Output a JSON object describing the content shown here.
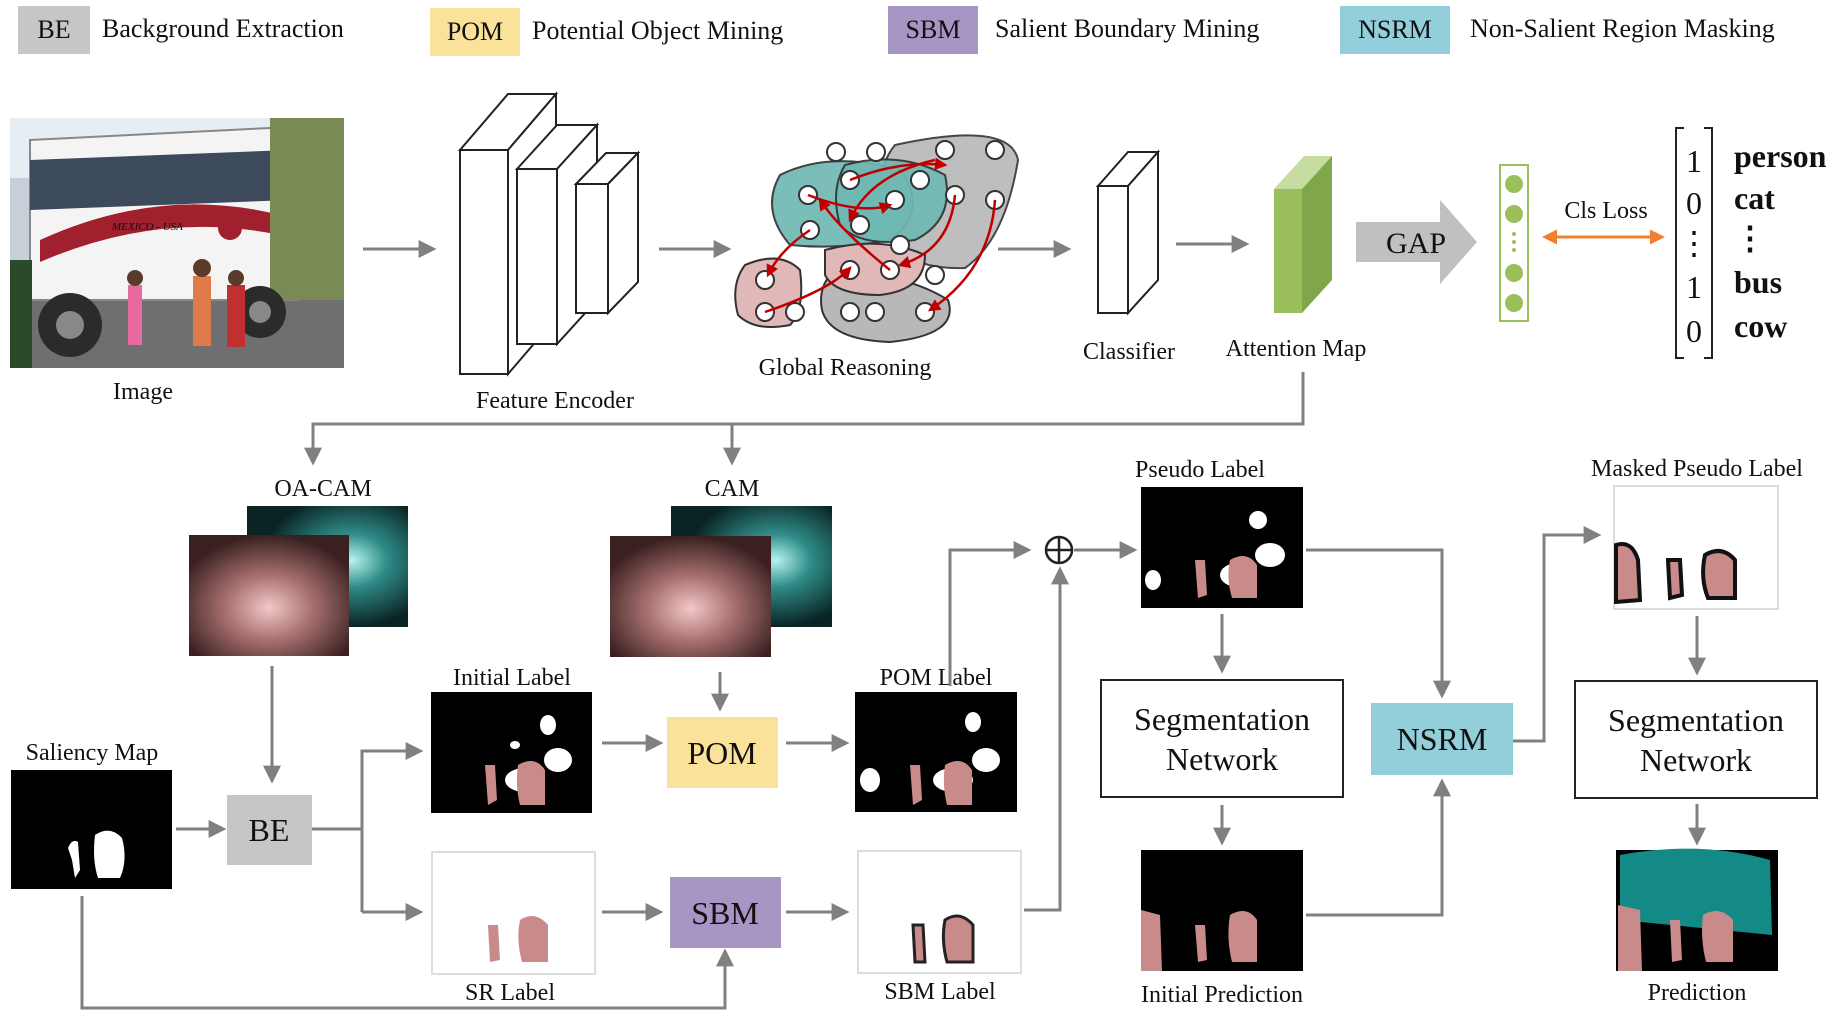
{
  "legend": [
    {
      "abbr": "BE",
      "label": "Background Extraction",
      "color": "#c6c6c6"
    },
    {
      "abbr": "POM",
      "label": "Potential Object Mining",
      "color": "#fbe29a"
    },
    {
      "abbr": "SBM",
      "label": "Salient Boundary Mining",
      "color": "#a795c4"
    },
    {
      "abbr": "NSRM",
      "label": "Non-Salient Region Masking",
      "color": "#93cedb"
    }
  ],
  "labels": {
    "image": "Image",
    "feature_encoder": "Feature Encoder",
    "global_reasoning": "Global Reasoning",
    "classifier": "Classifier",
    "attention_map": "Attention Map",
    "gap": "GAP",
    "cls_loss": "Cls Loss",
    "oa_cam": "OA-CAM",
    "cam": "CAM",
    "saliency_map": "Saliency Map",
    "initial_label": "Initial Label",
    "sr_label": "SR Label",
    "pom_label": "POM Label",
    "sbm_label": "SBM Label",
    "pseudo_label": "Pseudo Label",
    "initial_prediction": "Initial Prediction",
    "masked_pseudo_label": "Masked Pseudo Label",
    "prediction": "Prediction",
    "seg_net_1a": "Segmentation",
    "seg_net_1b": "Network",
    "seg_net_2a": "Segmentation",
    "seg_net_2b": "Network",
    "be_box": "BE",
    "pom_box": "POM",
    "sbm_box": "SBM",
    "nsrm_box": "NSRM",
    "bus_sign": "MEXICO - USA"
  },
  "class_vector": [
    {
      "value": "1",
      "name": "person",
      "positive": true
    },
    {
      "value": "0",
      "name": "cat",
      "positive": false
    },
    {
      "value": "⋮",
      "name": "⋮",
      "positive": false
    },
    {
      "value": "1",
      "name": "bus",
      "positive": true
    },
    {
      "value": "0",
      "name": "cow",
      "positive": false
    }
  ],
  "colors": {
    "arrow": "#808080",
    "positive": "#c00000",
    "loss_arrow": "#f08030",
    "person_mask": "#c98a8a",
    "bus_mask": "#138a86",
    "attention_green": "#9cbf5e"
  }
}
